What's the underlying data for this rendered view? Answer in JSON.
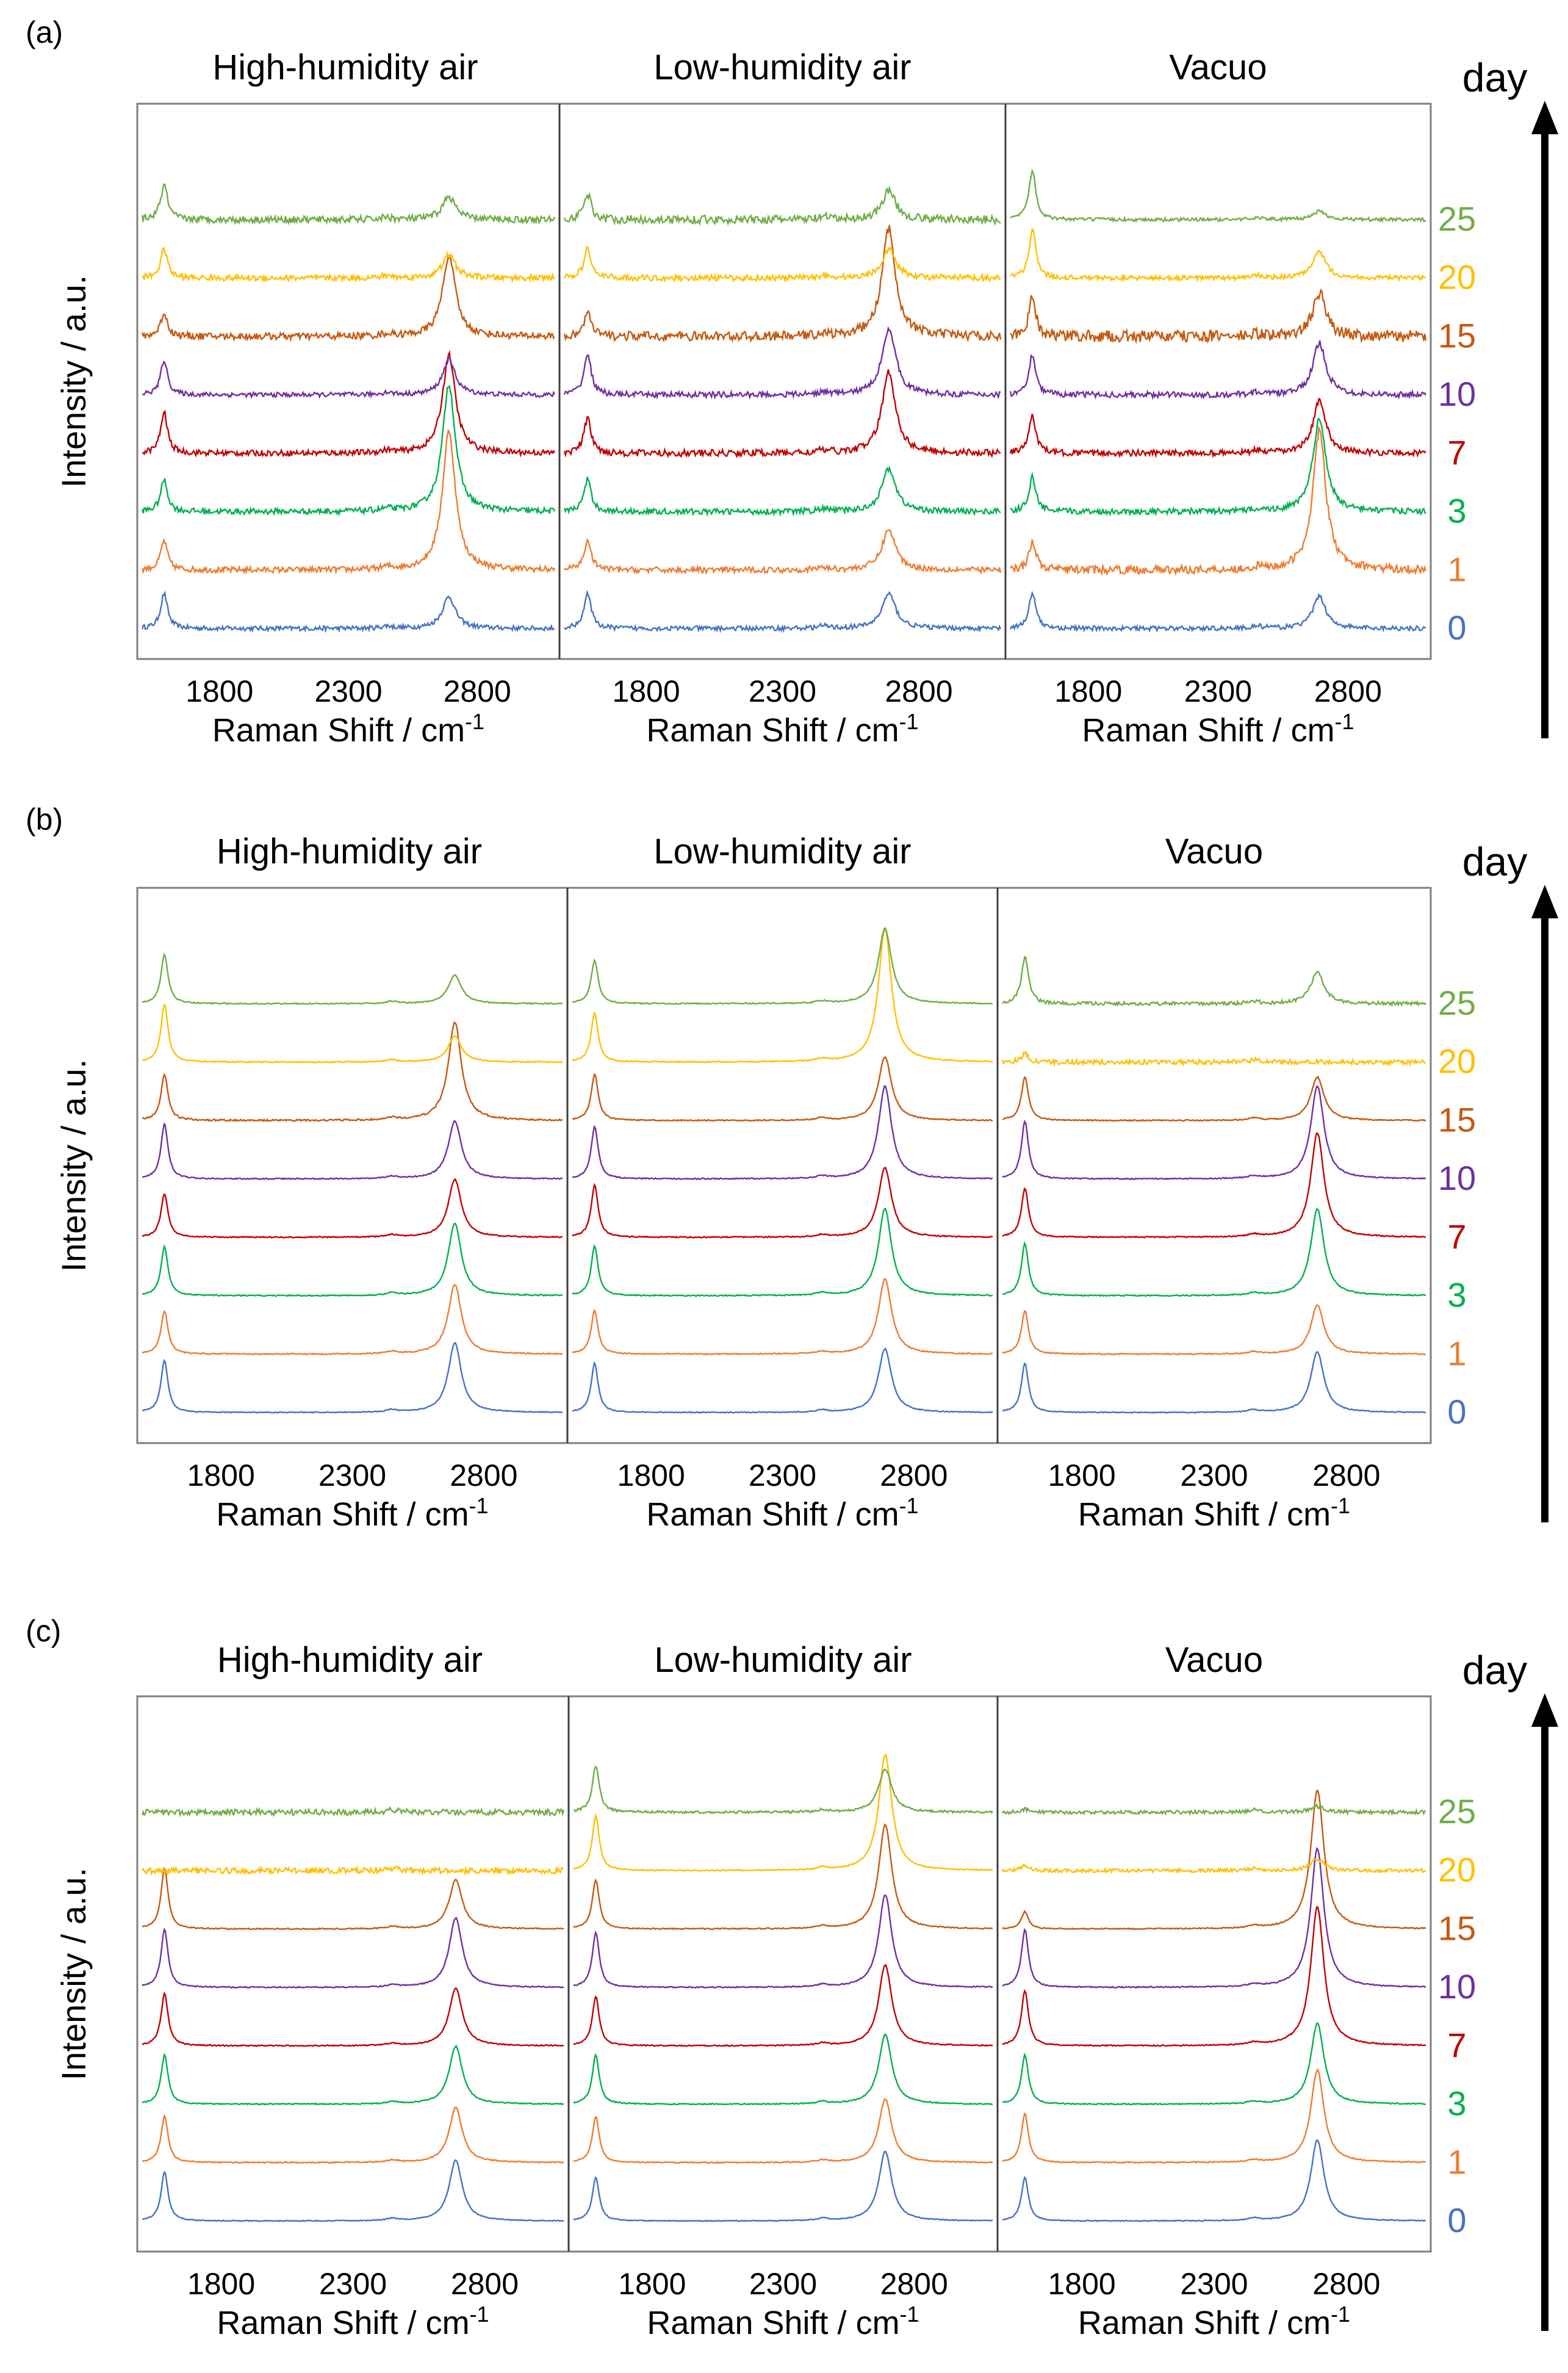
{
  "figure": {
    "day_label": "day",
    "days": [
      "0",
      "1",
      "3",
      "7",
      "10",
      "15",
      "20",
      "25"
    ],
    "day_colors": [
      "#4472C4",
      "#ED7D31",
      "#00B050",
      "#C00000",
      "#7030A0",
      "#C55A11",
      "#FFC000",
      "#70AD47"
    ],
    "y_axis_label": "Intensity / a.u.",
    "x_axis_label": "Raman Shift / cm",
    "x_axis_label_sup": "-1",
    "x_ticks": [
      1800,
      2300,
      2800
    ],
    "x_range": [
      1500,
      3100
    ],
    "conditions": [
      "High-humidity air",
      "Low-humidity air",
      "Vacuo"
    ]
  },
  "chart_data": [
    {
      "type": "line",
      "panel": "(a)",
      "title_labels": [
        "High-humidity air",
        "Low-humidity air",
        "Vacuo"
      ],
      "xlabel": "Raman Shift / cm-1",
      "ylabel": "Intensity / a.u.",
      "xlim": [
        1500,
        3100
      ],
      "x_ticks": [
        1800,
        2300,
        2800
      ],
      "series_names": [
        "0",
        "1",
        "3",
        "7",
        "10",
        "15",
        "20",
        "25"
      ],
      "subplots": [
        {
          "condition": "High-humidity air",
          "g_height": [
            0.6,
            0.5,
            0.55,
            0.7,
            0.6,
            0.4,
            0.5,
            0.6
          ],
          "twod_height": [
            0.55,
            2.4,
            2.2,
            1.7,
            0.6,
            1.4,
            0.4,
            0.4
          ],
          "noise": [
            0.04,
            0.05,
            0.05,
            0.05,
            0.04,
            0.06,
            0.05,
            0.06
          ]
        },
        {
          "condition": "Low-humidity air",
          "g_height": [
            0.6,
            0.5,
            0.55,
            0.6,
            0.7,
            0.4,
            0.5,
            0.45
          ],
          "twod_height": [
            0.6,
            0.7,
            0.75,
            1.4,
            1.15,
            1.85,
            0.5,
            0.5
          ],
          "noise": [
            0.04,
            0.05,
            0.05,
            0.06,
            0.05,
            0.08,
            0.05,
            0.07
          ]
        },
        {
          "condition": "Vacuo",
          "g_height": [
            0.6,
            0.5,
            0.6,
            0.65,
            0.7,
            0.7,
            0.85,
            0.85
          ],
          "twod_height": [
            0.55,
            2.4,
            1.6,
            0.9,
            0.9,
            0.75,
            0.45,
            0.15
          ],
          "noise": [
            0.04,
            0.07,
            0.05,
            0.05,
            0.05,
            0.1,
            0.04,
            0.03
          ]
        }
      ]
    },
    {
      "type": "line",
      "panel": "(b)",
      "title_labels": [
        "High-humidity air",
        "Low-humidity air",
        "Vacuo"
      ],
      "xlabel": "Raman Shift / cm-1",
      "ylabel": "Intensity / a.u.",
      "xlim": [
        1500,
        3100
      ],
      "x_ticks": [
        1800,
        2300,
        2800
      ],
      "series_names": [
        "0",
        "1",
        "3",
        "7",
        "10",
        "15",
        "20",
        "25"
      ],
      "subplots": [
        {
          "condition": "High-humidity air",
          "g_height": [
            0.9,
            0.75,
            0.85,
            0.75,
            0.95,
            0.8,
            1.0,
            0.85
          ],
          "twod_height": [
            1.2,
            1.2,
            1.25,
            1.0,
            1.0,
            1.7,
            0.45,
            0.5
          ],
          "noise": [
            0.008,
            0.01,
            0.01,
            0.01,
            0.01,
            0.015,
            0.01,
            0.01
          ]
        },
        {
          "condition": "Low-humidity air",
          "g_height": [
            0.85,
            0.75,
            0.85,
            0.9,
            0.9,
            0.8,
            0.85,
            0.75
          ],
          "twod_height": [
            1.1,
            1.3,
            1.5,
            1.2,
            1.6,
            1.1,
            2.3,
            1.3
          ],
          "noise": [
            0.008,
            0.01,
            0.01,
            0.01,
            0.01,
            0.01,
            0.01,
            0.01
          ]
        },
        {
          "condition": "Vacuo",
          "g_height": [
            0.85,
            0.75,
            0.9,
            0.85,
            1.0,
            0.75,
            0.15,
            0.8
          ],
          "twod_height": [
            1.05,
            0.85,
            1.5,
            1.8,
            1.6,
            0.75,
            0.0,
            0.55
          ],
          "noise": [
            0.008,
            0.01,
            0.01,
            0.01,
            0.01,
            0.01,
            0.04,
            0.03
          ]
        }
      ]
    },
    {
      "type": "line",
      "panel": "(c)",
      "title_labels": [
        "High-humidity air",
        "Low-humidity air",
        "Vacuo"
      ],
      "xlabel": "Raman Shift / cm-1",
      "ylabel": "Intensity / a.u.",
      "xlim": [
        1500,
        3100
      ],
      "x_ticks": [
        1800,
        2300,
        2800
      ],
      "series_names": [
        "0",
        "1",
        "3",
        "7",
        "10",
        "15",
        "20",
        "25"
      ],
      "subplots": [
        {
          "condition": "High-humidity air",
          "g_height": [
            0.85,
            0.8,
            0.85,
            0.9,
            1.0,
            1.05,
            0.0,
            0.0
          ],
          "twod_height": [
            1.05,
            0.95,
            1.0,
            1.0,
            1.2,
            0.85,
            0.0,
            0.0
          ],
          "noise": [
            0.008,
            0.01,
            0.01,
            0.01,
            0.01,
            0.01,
            0.05,
            0.05
          ]
        },
        {
          "condition": "Low-humidity air",
          "g_height": [
            0.75,
            0.8,
            0.85,
            0.85,
            0.95,
            0.85,
            0.95,
            0.8
          ],
          "twod_height": [
            1.2,
            1.1,
            1.2,
            1.4,
            1.6,
            1.8,
            2.0,
            0.75
          ],
          "noise": [
            0.008,
            0.01,
            0.01,
            0.01,
            0.01,
            0.01,
            0.01,
            0.02
          ]
        },
        {
          "condition": "Vacuo",
          "g_height": [
            0.75,
            0.85,
            0.85,
            0.95,
            1.0,
            0.3,
            0.1,
            0.05
          ],
          "twod_height": [
            1.4,
            1.6,
            1.4,
            2.4,
            2.4,
            2.4,
            0.2,
            0.1
          ],
          "noise": [
            0.008,
            0.01,
            0.01,
            0.01,
            0.01,
            0.01,
            0.03,
            0.03
          ]
        }
      ]
    }
  ]
}
